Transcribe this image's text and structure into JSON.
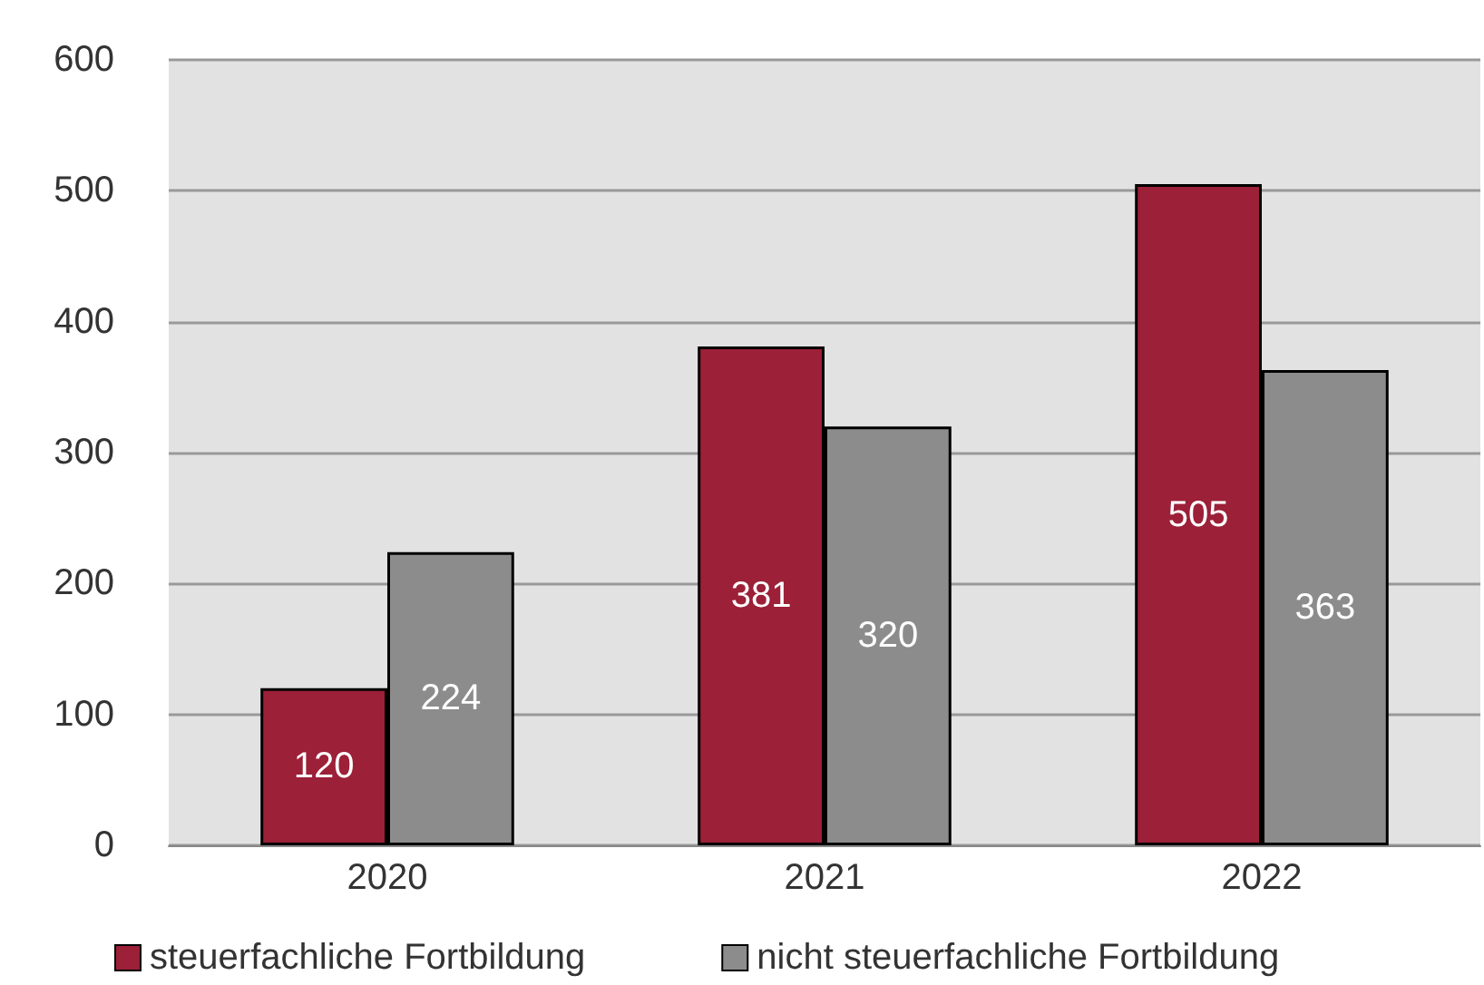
{
  "chart_data": {
    "type": "bar",
    "categories": [
      "2020",
      "2021",
      "2022"
    ],
    "series": [
      {
        "name": "steuerfachliche Fortbildung",
        "color": "#9b2038",
        "values": [
          120,
          381,
          505
        ]
      },
      {
        "name": "nicht steuerfachliche Fortbildung",
        "color": "#8c8c8c",
        "values": [
          224,
          320,
          363
        ]
      }
    ],
    "ylim": [
      0,
      600
    ],
    "yticks": [
      0,
      100,
      200,
      300,
      400,
      500,
      600
    ],
    "grid": "y",
    "legend": "bottom",
    "data_labels": true
  }
}
